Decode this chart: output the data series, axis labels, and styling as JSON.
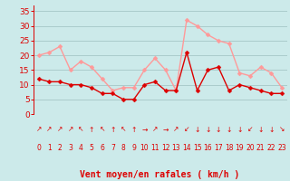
{
  "hours": [
    0,
    1,
    2,
    3,
    4,
    5,
    6,
    7,
    8,
    9,
    10,
    11,
    12,
    13,
    14,
    15,
    16,
    17,
    18,
    19,
    20,
    21,
    22,
    23
  ],
  "wind_avg": [
    12,
    11,
    11,
    10,
    10,
    9,
    7,
    7,
    5,
    5,
    10,
    11,
    8,
    8,
    21,
    8,
    15,
    16,
    8,
    10,
    9,
    8,
    7,
    7
  ],
  "wind_gust": [
    20,
    21,
    23,
    15,
    18,
    16,
    12,
    8,
    9,
    9,
    15,
    19,
    15,
    8,
    32,
    30,
    27,
    25,
    24,
    14,
    13,
    16,
    14,
    9
  ],
  "bg_color": "#cceaea",
  "grid_color": "#aacccc",
  "avg_color": "#dd0000",
  "gust_color": "#ff9999",
  "xlabel": "Vent moyen/en rafales ( km/h )",
  "yticks": [
    0,
    5,
    10,
    15,
    20,
    25,
    30,
    35
  ],
  "ylim": [
    0,
    37
  ],
  "arrows": [
    "↗",
    "↗",
    "↗",
    "↗",
    "↖",
    "↑",
    "↖",
    "↑",
    "↖",
    "↑",
    "→",
    "↗",
    "→",
    "↗",
    "↙",
    "↓",
    "↓",
    "↓",
    "↓",
    "↓",
    "↙",
    "↓",
    "↓",
    "↘"
  ]
}
